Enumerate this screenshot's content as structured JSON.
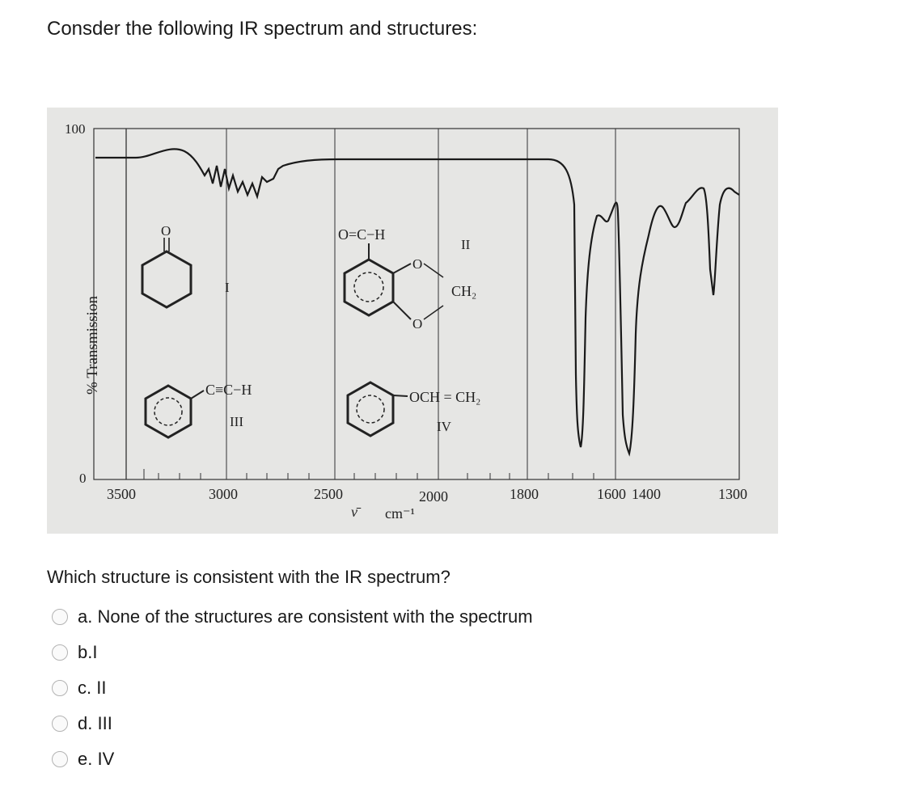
{
  "question": {
    "title": "Consder the following IR spectrum and structures:",
    "prompt": "Which structure is consistent with the IR spectrum?"
  },
  "figure": {
    "y_axis_label": "% Transmission",
    "y_tick_top": "100",
    "y_tick_bottom": "0",
    "x_ticks": [
      "3500",
      "3000",
      "2500",
      "2000",
      "1800",
      "1600",
      "1400",
      "1300"
    ],
    "x_unit_symbol": "ν̄",
    "x_unit": "cm⁻¹",
    "structures": {
      "I": {
        "label": "I",
        "atom": "O"
      },
      "II": {
        "label": "II",
        "formula_top": "O=C−H",
        "ring_o_top": "O",
        "ring_o_bottom": "O",
        "ch2": "CH₂"
      },
      "III": {
        "label": "III",
        "formula": "C≡C−H"
      },
      "IV": {
        "label": "IV",
        "formula": "OCH = CH₂"
      }
    }
  },
  "options": [
    {
      "letter": "a.",
      "text": "None of the structures are consistent with the spectrum"
    },
    {
      "letter": "b.",
      "text": "I"
    },
    {
      "letter": "c.",
      "text": "II"
    },
    {
      "letter": "d.",
      "text": "III"
    },
    {
      "letter": "e.",
      "text": "IV"
    }
  ],
  "colors": {
    "figure_bg": "#e6e6e4",
    "ink": "#222222",
    "radio_border": "#b3b3b3"
  }
}
